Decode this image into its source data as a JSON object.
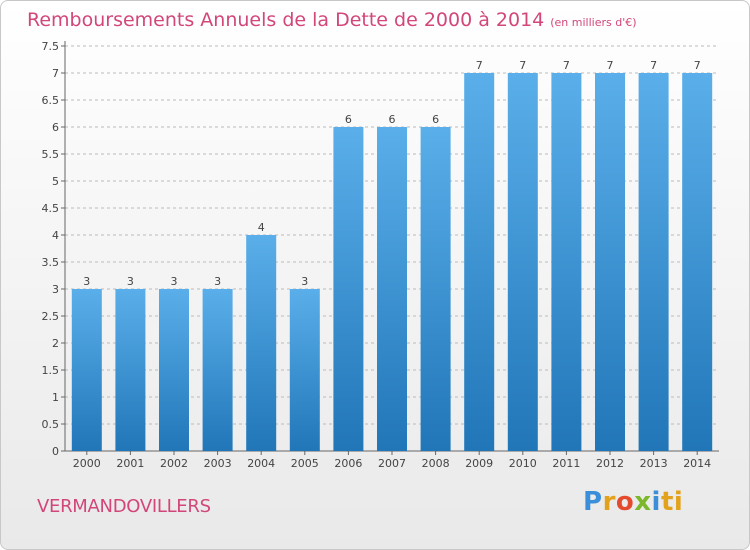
{
  "title": "Remboursements Annuels de la Dette de 2000 à 2014",
  "subtitle": "(en milliers d'€)",
  "town": "VERMANDOVILLERS",
  "logo": [
    "P",
    "r",
    "o",
    "x",
    "i",
    "ti"
  ],
  "colors": {
    "title": "#d2467a",
    "bar_top": "#5aafea",
    "bar_bottom": "#2176b8",
    "grid": "#bbbbbb"
  },
  "chart_data": {
    "type": "bar",
    "title": "Remboursements Annuels de la Dette de 2000 à 2014",
    "categories": [
      "2000",
      "2001",
      "2002",
      "2003",
      "2004",
      "2005",
      "2006",
      "2007",
      "2008",
      "2009",
      "2010",
      "2011",
      "2012",
      "2013",
      "2014"
    ],
    "values": [
      3,
      3,
      3,
      3,
      4,
      3,
      6,
      6,
      6,
      7,
      7,
      7,
      7,
      7,
      7
    ],
    "data_labels": [
      "3",
      "3",
      "3",
      "3",
      "4",
      "3",
      "6",
      "6",
      "6",
      "7",
      "7",
      "7",
      "7",
      "7",
      "7"
    ],
    "yticks": [
      "0",
      "0.5",
      "1",
      "1.5",
      "2",
      "2.5",
      "3",
      "3.5",
      "4",
      "4.5",
      "5",
      "5.5",
      "6",
      "6.5",
      "7",
      "7.5"
    ],
    "ylim": [
      0,
      7.5
    ],
    "grid": "horizontal dashed",
    "legend": "none",
    "xlabel": "",
    "ylabel": ""
  }
}
